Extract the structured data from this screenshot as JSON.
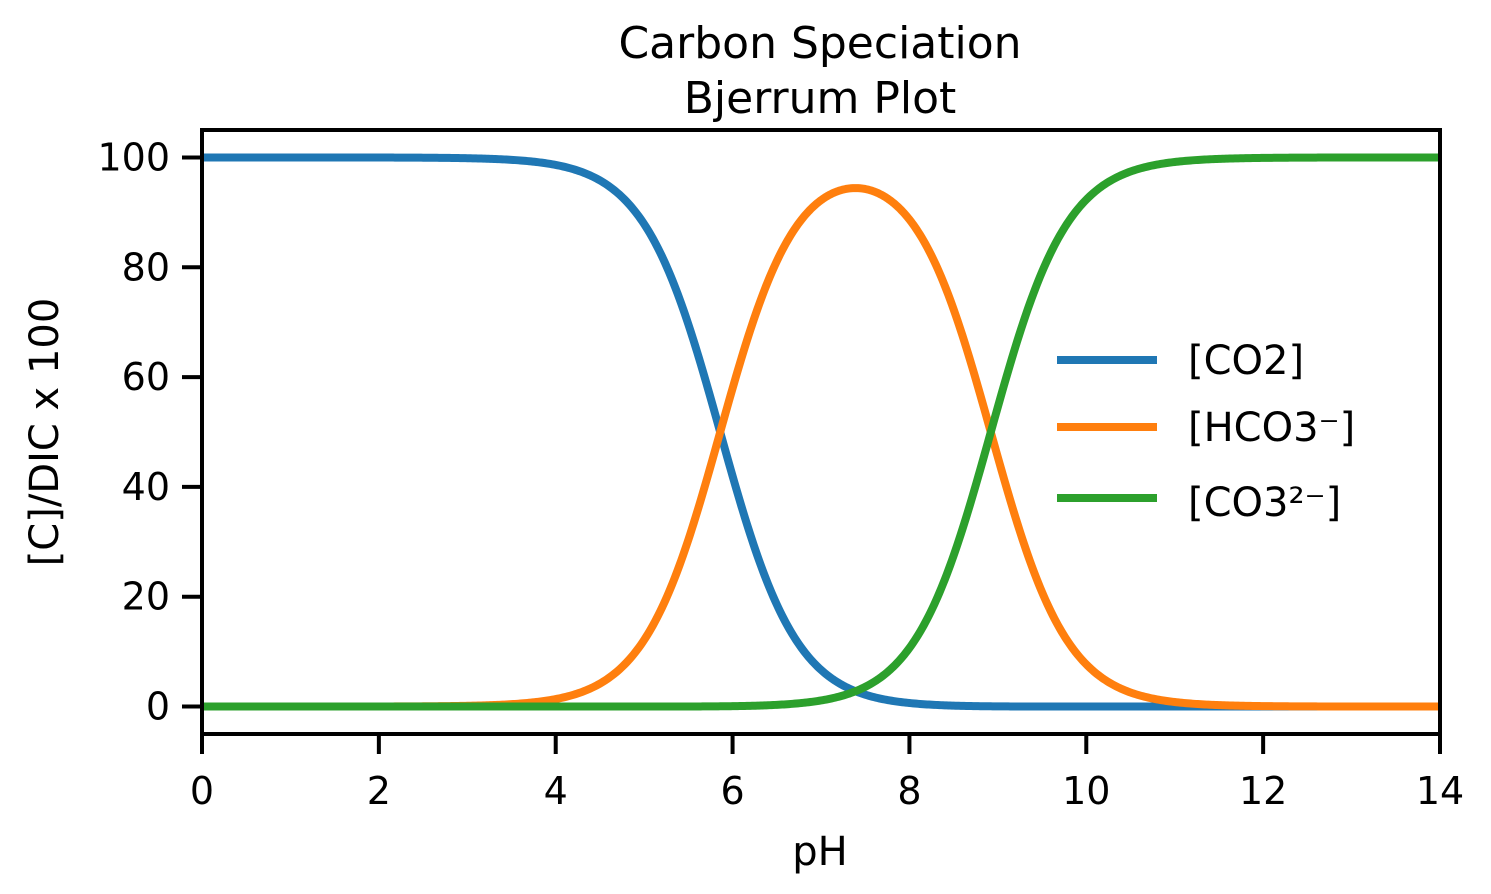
{
  "chart_data": {
    "type": "line",
    "title": "Carbon Speciation",
    "subtitle": "Bjerrum Plot",
    "xlabel": "pH",
    "ylabel": "[C]/DIC x 100",
    "xlim": [
      0,
      14
    ],
    "ylim": [
      -5,
      105
    ],
    "xticks": [
      0,
      2,
      4,
      6,
      8,
      10,
      12,
      14
    ],
    "yticks": [
      0,
      20,
      40,
      60,
      80,
      100
    ],
    "grid": false,
    "legend_position": "center-right",
    "pK1": 5.86,
    "pK2": 8.92,
    "x": [
      0,
      1,
      2,
      3,
      4,
      4.5,
      5,
      5.5,
      5.86,
      6,
      6.5,
      7,
      7.39,
      7.5,
      8,
      8.5,
      8.92,
      9,
      9.5,
      10,
      10.5,
      11,
      12,
      13,
      14
    ],
    "series": [
      {
        "name": "[CO2]",
        "color": "#1f77b4",
        "values": [
          100.0,
          100.0,
          99.99,
          99.86,
          98.63,
          95.77,
          87.66,
          69.59,
          50.0,
          42.49,
          18.48,
          6.74,
          2.86,
          2.2,
          0.52,
          0.1,
          0.02,
          0.0,
          0.0,
          0.0,
          0.0,
          0.0,
          0.0,
          0.0,
          0.0
        ]
      },
      {
        "name": "[HCO3⁻]",
        "color": "#ff7f0e",
        "values": [
          0.0,
          0.0,
          0.01,
          0.14,
          1.37,
          4.23,
          12.34,
          30.41,
          49.96,
          57.41,
          80.47,
          89.42,
          94.3,
          93.17,
          85.86,
          66.02,
          49.96,
          45.52,
          21.66,
          7.76,
          2.56,
          0.83,
          0.08,
          0.01,
          0.0
        ]
      },
      {
        "name": "[CO3²⁻]",
        "color": "#2ca02c",
        "values": [
          0.0,
          0.0,
          0.0,
          0.0,
          0.0,
          0.0,
          0.0,
          0.0,
          0.04,
          0.1,
          1.05,
          3.84,
          2.84,
          4.63,
          13.62,
          33.88,
          50.0,
          54.48,
          78.34,
          92.24,
          97.44,
          99.17,
          99.92,
          99.99,
          100.0
        ]
      }
    ]
  }
}
